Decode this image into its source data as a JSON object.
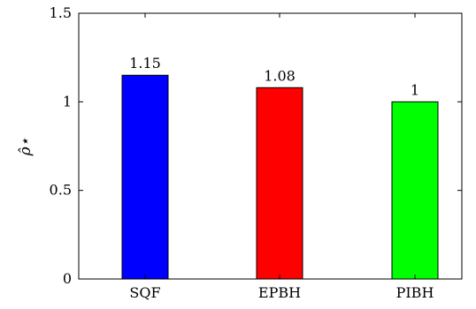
{
  "chart_data": {
    "type": "bar",
    "categories": [
      "SQF",
      "EPBH",
      "PIBH"
    ],
    "values": [
      1.15,
      1.08,
      1
    ],
    "value_labels": [
      "1.15",
      "1.08",
      "1"
    ],
    "colors": [
      "#0000ff",
      "#ff0000",
      "#00ff00"
    ],
    "title": "",
    "xlabel": "",
    "ylabel": "ρ̂⋆",
    "ylim": [
      0,
      1.5
    ],
    "yticks": [
      0,
      0.5,
      1,
      1.5
    ],
    "ytick_labels": [
      "0",
      "0.5",
      "1",
      "1.5"
    ],
    "grid": false,
    "legend": "none"
  }
}
